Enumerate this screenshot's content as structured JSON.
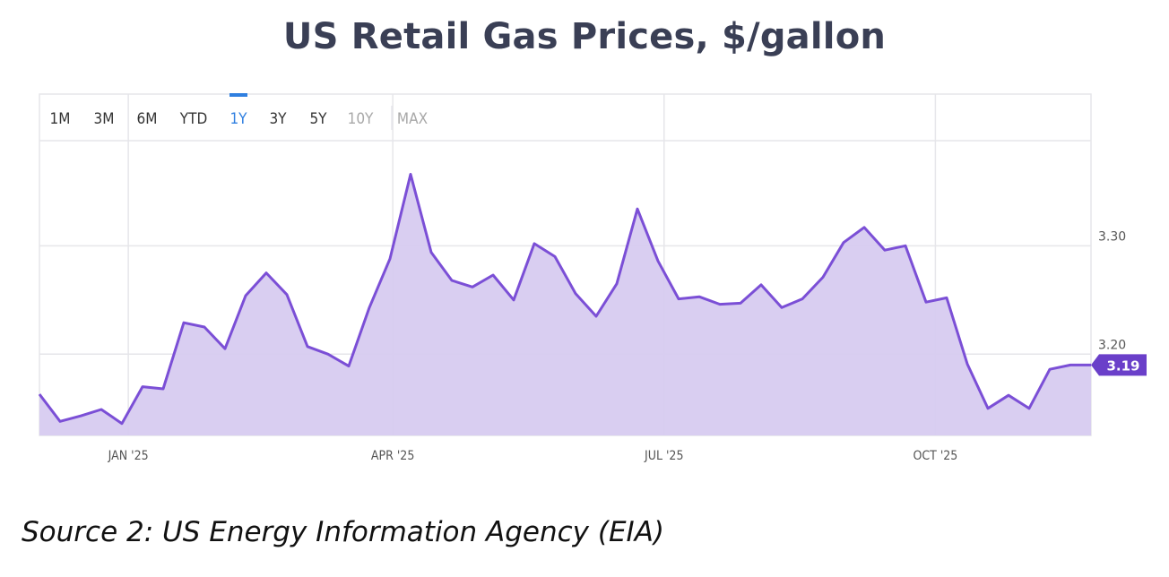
{
  "title": "US Retail Gas Prices, $/gallon",
  "caption": "Source 2: US Energy Information Agency (EIA)",
  "range_buttons": [
    {
      "label": "1M",
      "state": "normal"
    },
    {
      "label": "3M",
      "state": "normal"
    },
    {
      "label": "6M",
      "state": "normal"
    },
    {
      "label": "YTD",
      "state": "normal"
    },
    {
      "label": "1Y",
      "state": "active"
    },
    {
      "label": "3Y",
      "state": "normal"
    },
    {
      "label": "5Y",
      "state": "normal"
    },
    {
      "label": "10Y",
      "state": "disabled"
    },
    {
      "label": "MAX",
      "state": "disabled"
    }
  ],
  "colors": {
    "line": "#7b4fd6",
    "fill": "#d7cbf0",
    "grid": "#e6e6ea",
    "active": "#2f7fe0",
    "badge": "#6a3fc9",
    "text": "#333333",
    "disabled": "#a8a8a8"
  },
  "chart_data": {
    "type": "area",
    "x_labels": [
      "JAN '25",
      "APR '25",
      "JUL '25",
      "OCT '25"
    ],
    "y_ticks": [
      3.2,
      3.3
    ],
    "y_range": [
      3.125,
      3.44
    ],
    "last_value_label": "3.19",
    "series": [
      {
        "values": [
          3.163,
          3.138,
          3.143,
          3.149,
          3.136,
          3.17,
          3.168,
          3.229,
          3.225,
          3.205,
          3.254,
          3.275,
          3.255,
          3.207,
          3.2,
          3.189,
          3.243,
          3.288,
          3.366,
          3.294,
          3.268,
          3.262,
          3.273,
          3.25,
          3.302,
          3.29,
          3.256,
          3.235,
          3.265,
          3.334,
          3.286,
          3.251,
          3.253,
          3.246,
          3.247,
          3.264,
          3.243,
          3.251,
          3.271,
          3.303,
          3.317,
          3.296,
          3.3,
          3.248,
          3.252,
          3.191,
          3.15,
          3.162,
          3.15,
          3.186,
          3.19,
          3.19
        ]
      }
    ]
  }
}
